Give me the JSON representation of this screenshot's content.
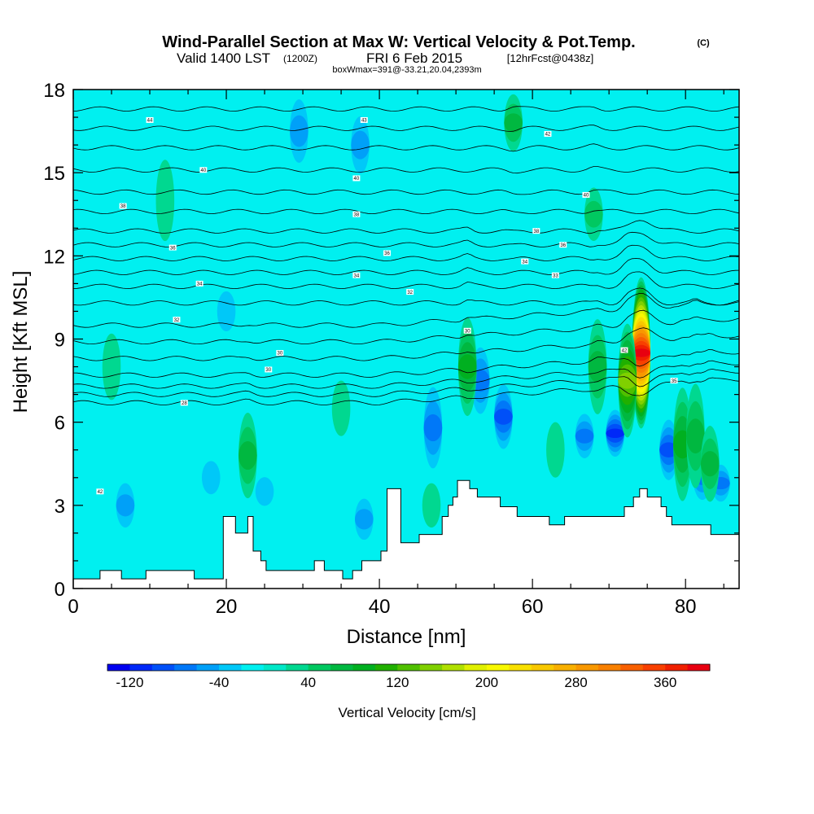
{
  "chart_data": {
    "type": "heatmap",
    "title": "Wind-Parallel Section at Max W: Vertical Velocity & Pot.Temp.",
    "title_mark": "(C)",
    "subtitle_valid": "Valid 1400 LST",
    "subtitle_utc": "(1200Z)",
    "subtitle_date": "FRI 6 Feb 2015",
    "subtitle_fcst": "[12hrFcst@0438z]",
    "subtitle_box": "boxWmax=391@-33.21,20.04,2393m",
    "xlabel": "Distance [nm]",
    "ylabel": "Height [Kft MSL]",
    "xlim": [
      0,
      87
    ],
    "ylim": [
      0,
      18
    ],
    "xticks": [
      0,
      20,
      40,
      60,
      80
    ],
    "yticks": [
      0,
      3,
      6,
      9,
      12,
      15,
      18
    ],
    "colorbar": {
      "label": "Vertical Velocity [cm/s]",
      "ticks": [
        "-120",
        "-40",
        "40",
        "120",
        "200",
        "280",
        "360"
      ],
      "min": -140,
      "max": 400,
      "step": 20,
      "colors": [
        "#0000f0",
        "#0028f8",
        "#0050f8",
        "#0078f8",
        "#00a0f8",
        "#00c8f8",
        "#00f0f0",
        "#00e8c8",
        "#00d890",
        "#00c860",
        "#00b840",
        "#00b020",
        "#20b000",
        "#50c000",
        "#80d000",
        "#b0e000",
        "#e0f000",
        "#f8f800",
        "#f8e000",
        "#f8c800",
        "#f8b000",
        "#f89800",
        "#f88000",
        "#f86000",
        "#f84000",
        "#f02000",
        "#e80010"
      ]
    },
    "terrain_kft": [
      [
        0,
        0.35
      ],
      [
        3.5,
        0.35
      ],
      [
        3.5,
        0.65
      ],
      [
        6.3,
        0.65
      ],
      [
        6.3,
        0.35
      ],
      [
        9.5,
        0.35
      ],
      [
        9.5,
        0.65
      ],
      [
        15.8,
        0.65
      ],
      [
        15.8,
        0.35
      ],
      [
        19.6,
        0.35
      ],
      [
        19.6,
        2.6
      ],
      [
        21.2,
        2.6
      ],
      [
        21.2,
        2.0
      ],
      [
        22.8,
        2.0
      ],
      [
        22.8,
        2.6
      ],
      [
        23.5,
        2.6
      ],
      [
        23.5,
        1.35
      ],
      [
        24.5,
        1.35
      ],
      [
        24.5,
        1.0
      ],
      [
        25.2,
        1.0
      ],
      [
        25.2,
        0.65
      ],
      [
        31.5,
        0.65
      ],
      [
        31.5,
        1.0
      ],
      [
        32.8,
        1.0
      ],
      [
        32.8,
        0.65
      ],
      [
        35.2,
        0.65
      ],
      [
        35.2,
        0.35
      ],
      [
        36.5,
        0.35
      ],
      [
        36.5,
        0.65
      ],
      [
        37.7,
        0.65
      ],
      [
        37.7,
        1.0
      ],
      [
        40.2,
        1.0
      ],
      [
        40.2,
        1.35
      ],
      [
        41.0,
        1.35
      ],
      [
        41.0,
        3.6
      ],
      [
        42.8,
        3.6
      ],
      [
        42.8,
        1.65
      ],
      [
        45.2,
        1.65
      ],
      [
        45.2,
        1.95
      ],
      [
        48.2,
        1.95
      ],
      [
        48.2,
        2.6
      ],
      [
        49.0,
        2.6
      ],
      [
        49.0,
        3.0
      ],
      [
        49.6,
        3.0
      ],
      [
        49.6,
        3.3
      ],
      [
        50.2,
        3.3
      ],
      [
        50.2,
        3.9
      ],
      [
        51.8,
        3.9
      ],
      [
        51.8,
        3.6
      ],
      [
        52.8,
        3.6
      ],
      [
        52.8,
        3.3
      ],
      [
        55.8,
        3.3
      ],
      [
        55.8,
        2.95
      ],
      [
        58.0,
        2.95
      ],
      [
        58.0,
        2.6
      ],
      [
        62.2,
        2.6
      ],
      [
        62.2,
        2.3
      ],
      [
        64.2,
        2.3
      ],
      [
        64.2,
        2.6
      ],
      [
        72.0,
        2.6
      ],
      [
        72.0,
        2.95
      ],
      [
        73.2,
        2.95
      ],
      [
        73.2,
        3.3
      ],
      [
        74.0,
        3.3
      ],
      [
        74.0,
        3.6
      ],
      [
        75.0,
        3.6
      ],
      [
        75.0,
        3.3
      ],
      [
        76.8,
        3.3
      ],
      [
        76.8,
        2.95
      ],
      [
        77.5,
        2.95
      ],
      [
        77.5,
        2.6
      ],
      [
        78.2,
        2.6
      ],
      [
        78.2,
        2.3
      ],
      [
        83.3,
        2.3
      ],
      [
        83.3,
        1.95
      ],
      [
        87,
        1.95
      ]
    ],
    "updrafts": [
      {
        "x": 74.2,
        "z": 8.5,
        "sx": 0.85,
        "sz": 2.8,
        "w": 391
      },
      {
        "x": 72.4,
        "z": 7.5,
        "sx": 0.45,
        "sz": 2.2,
        "w": 150
      },
      {
        "x": 51.5,
        "z": 8.0,
        "sx": 0.35,
        "sz": 2.0,
        "w": 90
      },
      {
        "x": 68.5,
        "z": 8.0,
        "sx": 0.35,
        "sz": 2.0,
        "w": 70
      },
      {
        "x": 22.8,
        "z": 4.8,
        "sx": 0.4,
        "sz": 1.8,
        "w": 60
      },
      {
        "x": 79.6,
        "z": 5.2,
        "sx": 0.4,
        "sz": 2.3,
        "w": 95
      },
      {
        "x": 81.3,
        "z": 5.5,
        "sx": 0.3,
        "sz": 2.2,
        "w": 75
      },
      {
        "x": 83.2,
        "z": 4.5,
        "sx": 0.3,
        "sz": 1.6,
        "w": 60
      },
      {
        "x": 57.5,
        "z": 16.8,
        "sx": 0.45,
        "sz": 1.2,
        "w": 70
      },
      {
        "x": 68.0,
        "z": 13.5,
        "sx": 0.4,
        "sz": 1.2,
        "w": 55
      },
      {
        "x": 12.0,
        "z": 14.0,
        "sx": 1.0,
        "sz": 2.2,
        "w": 30
      },
      {
        "x": 5.0,
        "z": 8.0,
        "sx": 1.2,
        "sz": 1.8,
        "w": 25
      },
      {
        "x": 35.0,
        "z": 6.5,
        "sx": 0.8,
        "sz": 1.5,
        "w": 25
      },
      {
        "x": 63.0,
        "z": 5.0,
        "sx": 0.5,
        "sz": 1.5,
        "w": 30
      },
      {
        "x": 46.8,
        "z": 3.0,
        "sx": 0.3,
        "sz": 1.2,
        "w": 35
      }
    ],
    "downdrafts": [
      {
        "x": 70.8,
        "z": 5.6,
        "sx": 0.4,
        "sz": 1.1,
        "w": -110
      },
      {
        "x": 66.8,
        "z": 5.5,
        "sx": 0.35,
        "sz": 1.2,
        "w": -80
      },
      {
        "x": 56.2,
        "z": 6.2,
        "sx": 0.35,
        "sz": 1.6,
        "w": -90
      },
      {
        "x": 53.2,
        "z": 7.5,
        "sx": 0.3,
        "sz": 1.8,
        "w": -70
      },
      {
        "x": 47.0,
        "z": 5.8,
        "sx": 0.6,
        "sz": 2.2,
        "w": -80
      },
      {
        "x": 77.8,
        "z": 5.0,
        "sx": 0.4,
        "sz": 1.5,
        "w": -90
      },
      {
        "x": 82.2,
        "z": 4.0,
        "sx": 0.25,
        "sz": 1.2,
        "w": -80
      },
      {
        "x": 84.6,
        "z": 3.8,
        "sx": 0.35,
        "sz": 1.0,
        "w": -70
      },
      {
        "x": 6.8,
        "z": 3.0,
        "sx": 0.6,
        "sz": 1.4,
        "w": -45
      },
      {
        "x": 18.0,
        "z": 4.0,
        "sx": 0.6,
        "sz": 1.5,
        "w": -40
      },
      {
        "x": 25.0,
        "z": 3.5,
        "sx": 0.5,
        "sz": 1.3,
        "w": -40
      },
      {
        "x": 38.0,
        "z": 2.5,
        "sx": 0.8,
        "sz": 1.3,
        "w": -45
      },
      {
        "x": 29.5,
        "z": 16.5,
        "sx": 0.35,
        "sz": 2.0,
        "w": -50
      },
      {
        "x": 37.5,
        "z": 16.0,
        "sx": 0.4,
        "sz": 1.8,
        "w": -45
      },
      {
        "x": 20.0,
        "z": 10.0,
        "sx": 0.5,
        "sz": 1.8,
        "w": -30
      }
    ],
    "isentropes_kft": [
      6.7,
      7.0,
      7.3,
      7.7,
      8.3,
      8.9,
      9.5,
      10.3,
      10.9,
      11.4,
      11.9,
      12.4,
      12.9,
      13.6,
      14.3,
      15.1,
      15.9,
      16.6,
      17.3
    ],
    "isentrope_labels": [
      {
        "x": 10.0,
        "z": 16.9,
        "text": "44"
      },
      {
        "x": 38.0,
        "z": 16.9,
        "text": "43"
      },
      {
        "x": 62.0,
        "z": 16.4,
        "text": "42"
      },
      {
        "x": 17.0,
        "z": 15.1,
        "text": "40"
      },
      {
        "x": 37.0,
        "z": 14.8,
        "text": "40"
      },
      {
        "x": 6.5,
        "z": 13.8,
        "text": "38"
      },
      {
        "x": 37.0,
        "z": 13.5,
        "text": "38"
      },
      {
        "x": 67.0,
        "z": 14.2,
        "text": "40"
      },
      {
        "x": 60.5,
        "z": 12.9,
        "text": "38"
      },
      {
        "x": 13.0,
        "z": 12.3,
        "text": "36"
      },
      {
        "x": 41.0,
        "z": 12.1,
        "text": "36"
      },
      {
        "x": 64.0,
        "z": 12.4,
        "text": "36"
      },
      {
        "x": 59.0,
        "z": 11.8,
        "text": "34"
      },
      {
        "x": 16.5,
        "z": 11.0,
        "text": "34"
      },
      {
        "x": 37.0,
        "z": 11.3,
        "text": "34"
      },
      {
        "x": 63.0,
        "z": 11.3,
        "text": "33"
      },
      {
        "x": 44.0,
        "z": 10.7,
        "text": "32"
      },
      {
        "x": 13.5,
        "z": 9.7,
        "text": "32"
      },
      {
        "x": 51.5,
        "z": 9.3,
        "text": "30"
      },
      {
        "x": 27.0,
        "z": 8.5,
        "text": "30"
      },
      {
        "x": 25.5,
        "z": 7.9,
        "text": "30"
      },
      {
        "x": 72.0,
        "z": 8.6,
        "text": "42"
      },
      {
        "x": 78.5,
        "z": 7.5,
        "text": "35"
      },
      {
        "x": 14.5,
        "z": 6.7,
        "text": "28"
      },
      {
        "x": 3.5,
        "z": 3.5,
        "text": "42"
      }
    ]
  }
}
